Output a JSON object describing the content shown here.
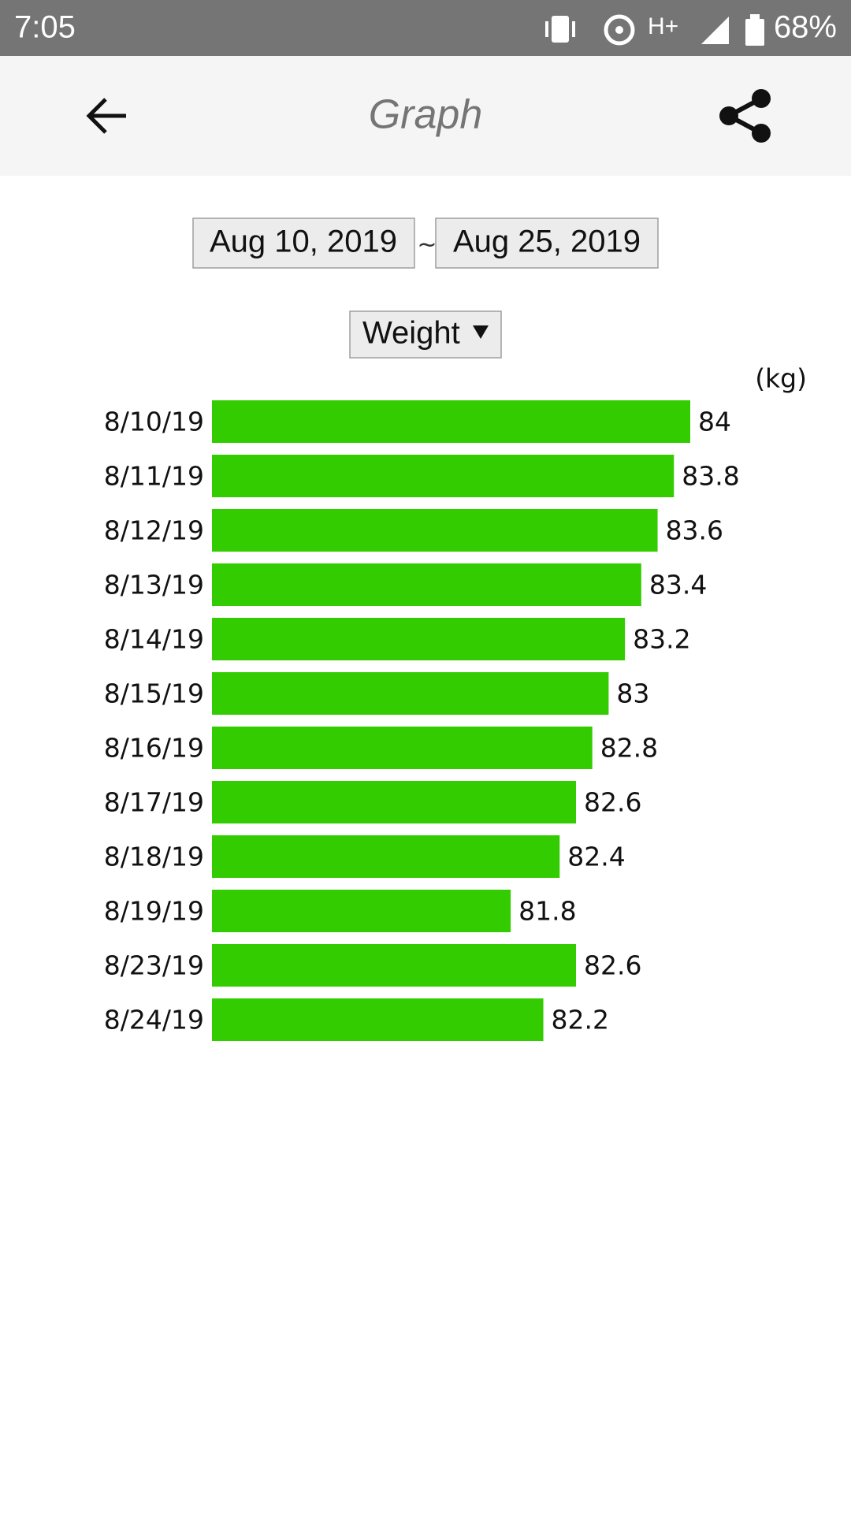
{
  "status_bar": {
    "time": "7:05",
    "network": "H+",
    "battery": "68%"
  },
  "app_bar": {
    "title": "Graph"
  },
  "date_range": {
    "start": "Aug 10, 2019",
    "separator": "~",
    "end": "Aug 25, 2019"
  },
  "dropdown": {
    "label": "Weight"
  },
  "chart_data": {
    "type": "bar",
    "orientation": "horizontal",
    "unit": "(kg)",
    "categories": [
      "8/10/19",
      "8/11/19",
      "8/12/19",
      "8/13/19",
      "8/14/19",
      "8/15/19",
      "8/16/19",
      "8/17/19",
      "8/18/19",
      "8/19/19",
      "8/23/19",
      "8/24/19"
    ],
    "values": [
      84,
      83.8,
      83.6,
      83.4,
      83.2,
      83,
      82.8,
      82.6,
      82.4,
      81.8,
      82.6,
      82.2
    ],
    "color": "#33cc00",
    "xlim": [
      78.14,
      84
    ]
  }
}
